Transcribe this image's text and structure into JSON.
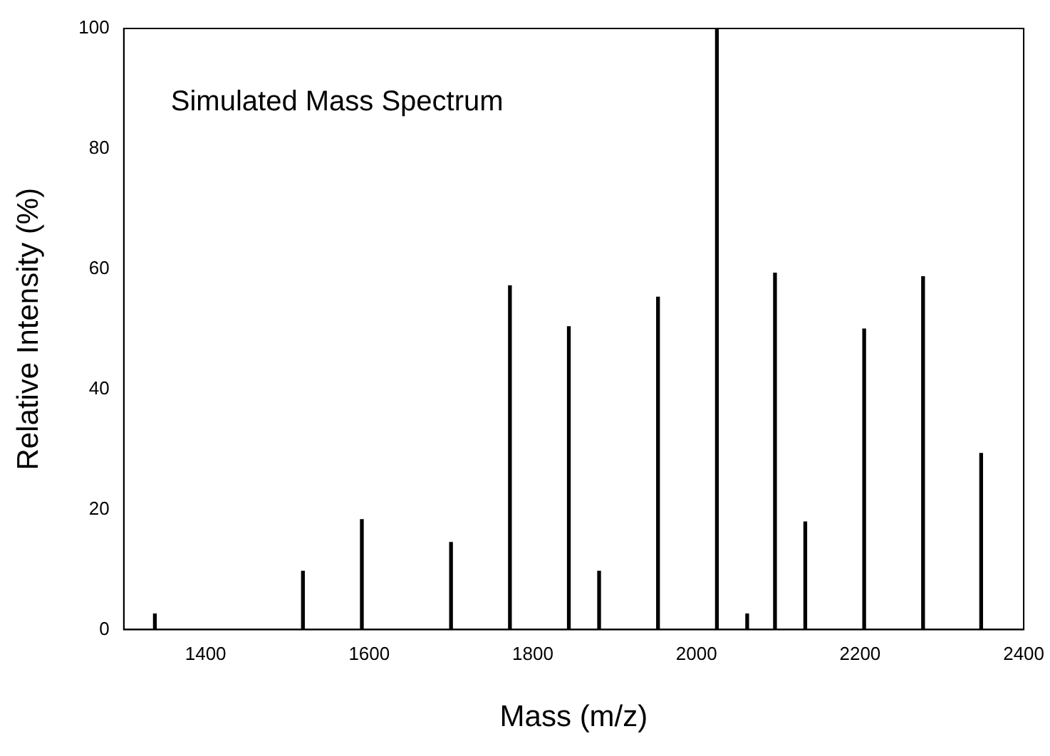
{
  "chart_data": {
    "type": "bar",
    "xlabel": "Mass (m/z)",
    "ylabel": "Relative Intensity (%)",
    "annotations": [
      "Simulated Mass Spectrum"
    ],
    "x": [
      1338,
      1519,
      1591,
      1700,
      1772,
      1844,
      1881,
      1953,
      2025,
      2062,
      2096,
      2133,
      2205,
      2277,
      2348
    ],
    "values": [
      2.6,
      9.7,
      18.3,
      14.5,
      57.2,
      50.4,
      9.7,
      55.3,
      100,
      2.6,
      59.3,
      17.9,
      50,
      58.7,
      29.3
    ],
    "color": "#000000",
    "xlim": [
      1300,
      2400
    ],
    "xticks": [
      1400,
      1600,
      1800,
      2000,
      2200,
      2400
    ],
    "ylim": [
      0,
      100
    ],
    "yticks": [
      0,
      20,
      40,
      60,
      80,
      100
    ],
    "grid": false,
    "legend": false
  }
}
